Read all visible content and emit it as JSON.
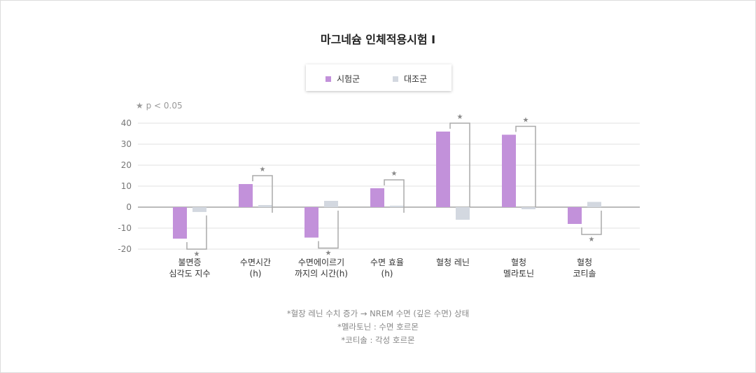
{
  "chart_data": {
    "type": "bar",
    "title": "마그네슘 인체적용시험 I",
    "significance_note": "★ p < 0.05",
    "categories": [
      [
        "불면증",
        "심각도 지수"
      ],
      [
        "수면시간",
        "(h)"
      ],
      [
        "수면에이르기",
        "까지의 시간(h)"
      ],
      [
        "수면 효율",
        "(h)"
      ],
      [
        "혈청 레닌"
      ],
      [
        "혈청",
        "멜라토닌"
      ],
      [
        "혈청",
        "코티솔"
      ]
    ],
    "series": [
      {
        "name": "시험군",
        "color": "#c291da",
        "values": [
          -15,
          11,
          -14.5,
          9,
          36,
          34.5,
          -8
        ]
      },
      {
        "name": "대조군",
        "color": "#d3d8e0",
        "values": [
          -2.3,
          1,
          3,
          0.7,
          -6,
          -1,
          2.5
        ]
      }
    ],
    "significant": [
      true,
      true,
      true,
      true,
      true,
      true,
      true
    ],
    "ylim": [
      -20,
      40
    ],
    "yticks": [
      -20,
      -10,
      0,
      10,
      20,
      30,
      40
    ],
    "grid": true,
    "legend": "top-center"
  },
  "notes": [
    "*혈장 레닌 수치 증가  → NREM 수면 (깊은 수면) 상태",
    "*멜라토닌 : 수면 호르몬",
    "*코티솔 : 각성 호르몬"
  ]
}
